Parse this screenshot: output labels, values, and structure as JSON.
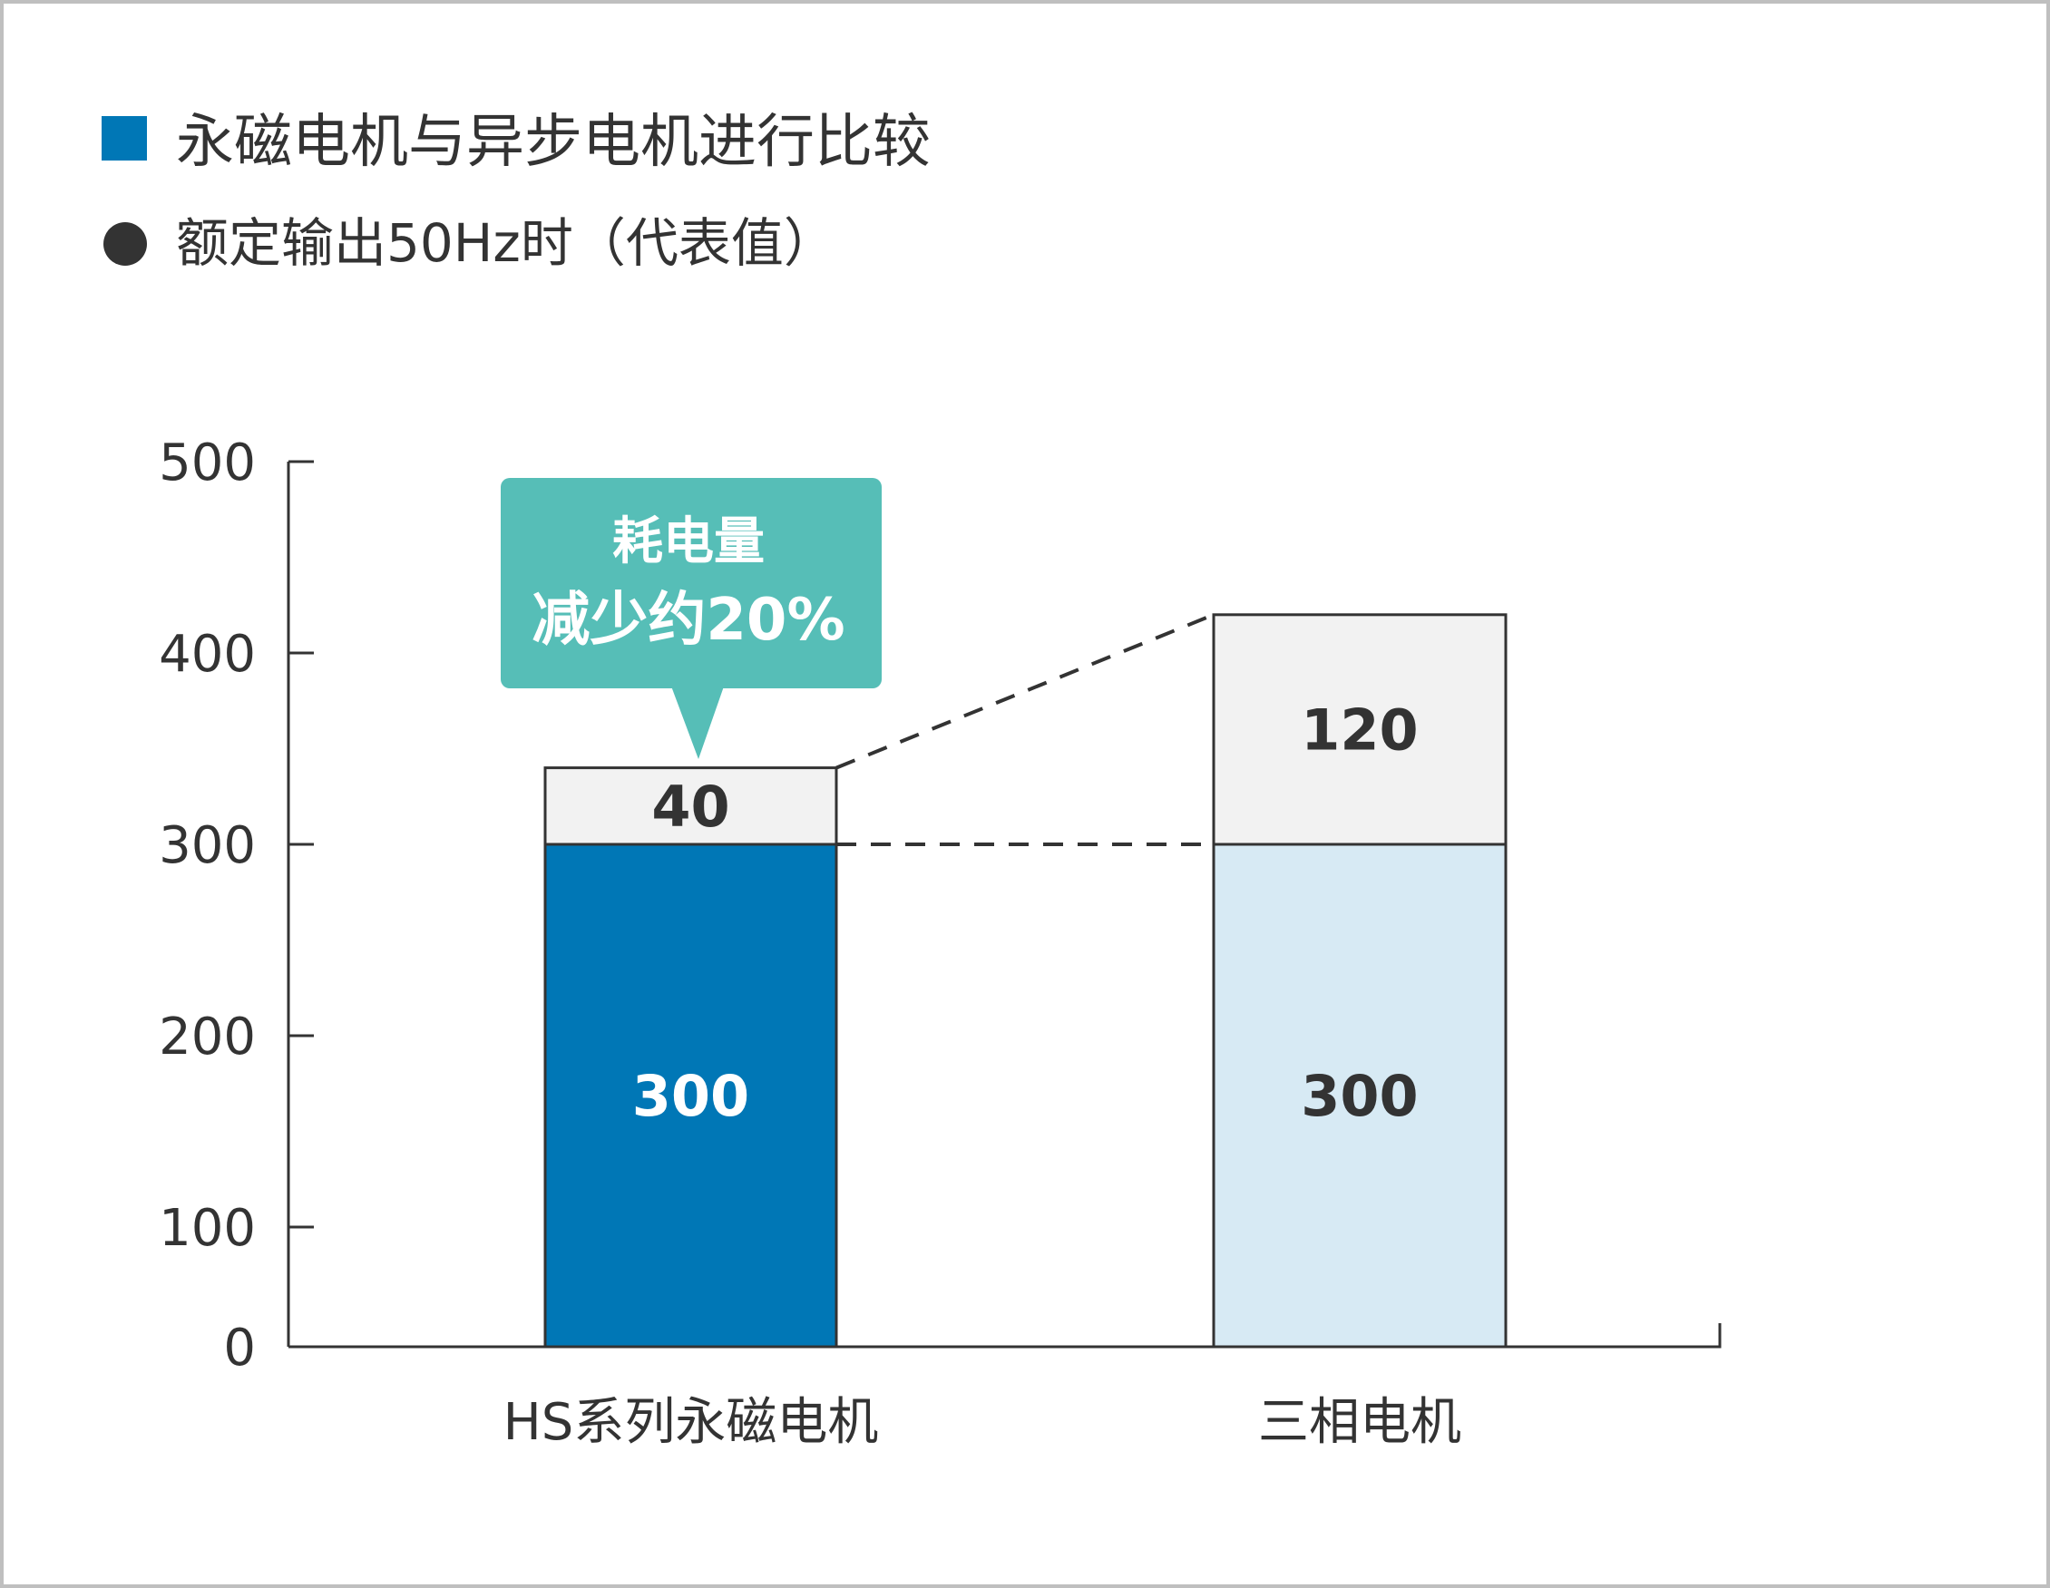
{
  "legend": {
    "title": "永磁电机与异步电机进行比较",
    "subtitle": "额定输出50Hz时（代表值）",
    "title_marker_color": "#0077B6",
    "subtitle_marker_color": "#333333"
  },
  "callout": {
    "line1": "耗电量",
    "line2": "减少约20%",
    "color": "#56BEB7"
  },
  "chart_data": {
    "type": "bar",
    "stacked": true,
    "categories": [
      "HS系列永磁电机",
      "三相电机"
    ],
    "series": [
      {
        "values": [
          300,
          300
        ],
        "colors": [
          "#0077B6",
          "#D7EAF4"
        ],
        "label_colors": [
          "#FFFFFF",
          "#333333"
        ]
      },
      {
        "values": [
          40,
          120
        ],
        "colors": [
          "#F2F2F2",
          "#F2F2F2"
        ],
        "label_colors": [
          "#333333",
          "#333333"
        ]
      }
    ],
    "data_labels": [
      [
        "300",
        "300"
      ],
      [
        "40",
        "120"
      ]
    ],
    "yticks": [
      0,
      100,
      200,
      300,
      400,
      500
    ],
    "ytick_labels": [
      "0",
      "100",
      "200",
      "300",
      "400",
      "500"
    ],
    "ylim": [
      0,
      500
    ],
    "y_axis_broken_below": 100,
    "grid": false,
    "xlabel": "",
    "ylabel": "",
    "title": ""
  }
}
